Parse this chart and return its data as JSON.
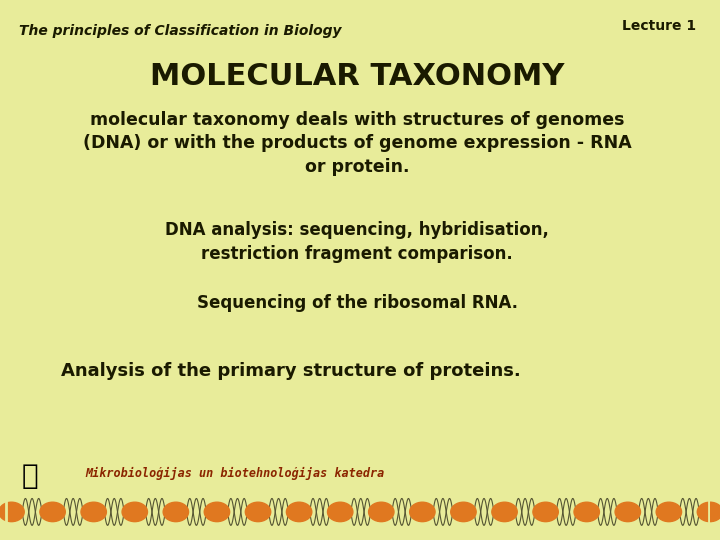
{
  "bg_color": "#e8ec9a",
  "title_left": "The principles of Classification in Biology",
  "title_right": "Lecture 1",
  "heading": "MOLECULAR TAXONOMY",
  "body1": "molecular taxonomy deals with structures of genomes\n(DNA) or with the products of genome expression - RNA\nor protein.",
  "body2": "DNA analysis: sequencing, hybridisation,\nrestriction fragment comparison.",
  "body3": "Sequencing of the ribosomal RNA.",
  "body4": "Analysis of the primary structure of proteins.",
  "footer_text": "Mikrobioloģijas un biotehnoloģijas katedra",
  "text_color": "#1a1a00",
  "footer_color": "#8B2500",
  "heading_color": "#1a1a00",
  "border_color": "#8B2500",
  "orange_color": "#e07820",
  "dna_color": "#555533"
}
